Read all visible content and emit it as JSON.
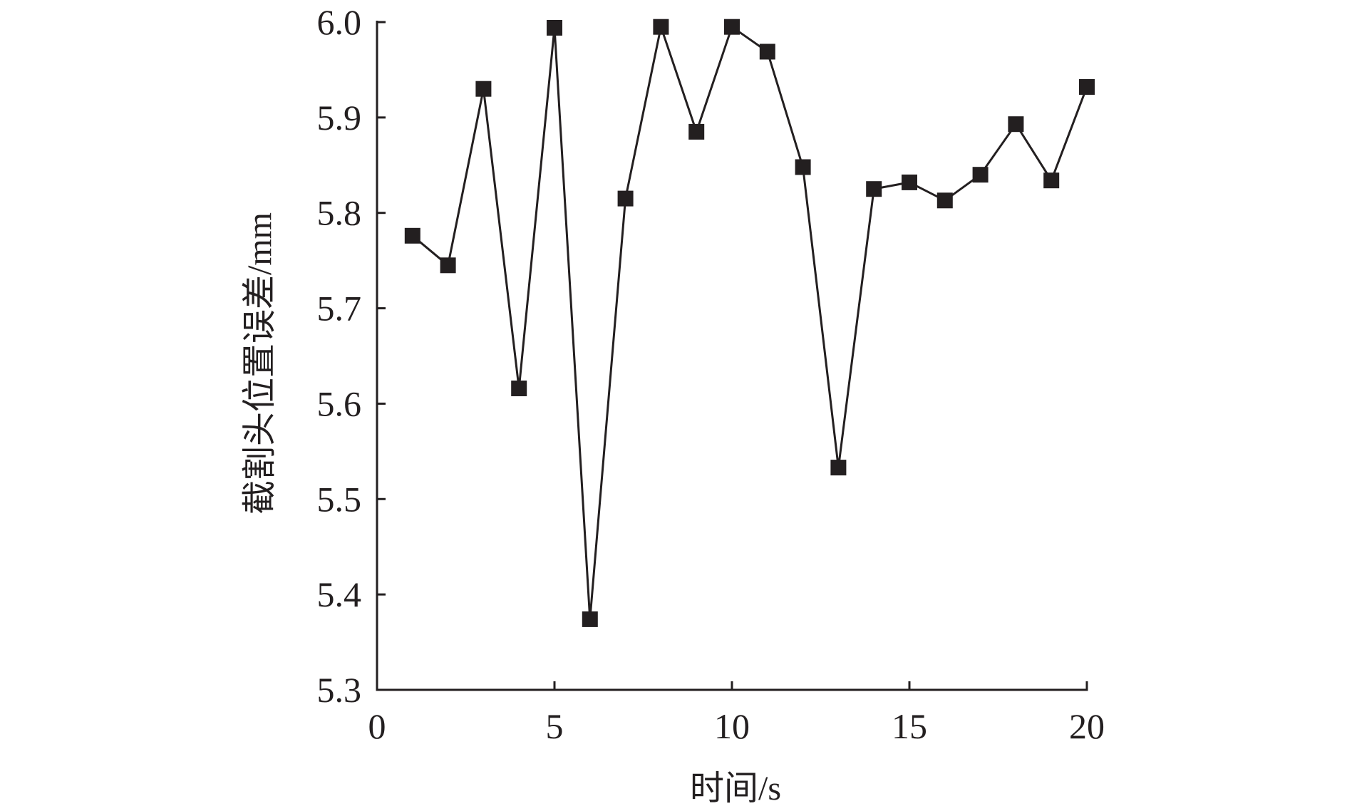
{
  "chart_data": {
    "type": "line",
    "title": "",
    "xlabel": "时间/s",
    "ylabel": "截割头位置误差/mm",
    "xlim": [
      0,
      20
    ],
    "ylim": [
      5.3,
      6.0
    ],
    "xticks": [
      "0",
      "5",
      "10",
      "15",
      "20"
    ],
    "yticks": [
      "5.3",
      "5.4",
      "5.5",
      "5.6",
      "5.7",
      "5.8",
      "5.9",
      "6.0"
    ],
    "grid": false,
    "legend": "none",
    "marker": "square",
    "color": "#231f20",
    "series": [
      {
        "x": [
          1,
          2,
          3,
          4,
          5,
          6,
          7,
          8,
          9,
          10,
          11,
          12,
          13,
          14,
          15,
          16,
          17,
          18,
          19,
          20
        ],
        "y": [
          5.776,
          5.745,
          5.93,
          5.616,
          5.994,
          5.374,
          5.815,
          5.995,
          5.885,
          5.995,
          5.969,
          5.848,
          5.533,
          5.825,
          5.832,
          5.813,
          5.84,
          5.893,
          5.834,
          5.932
        ]
      }
    ]
  }
}
